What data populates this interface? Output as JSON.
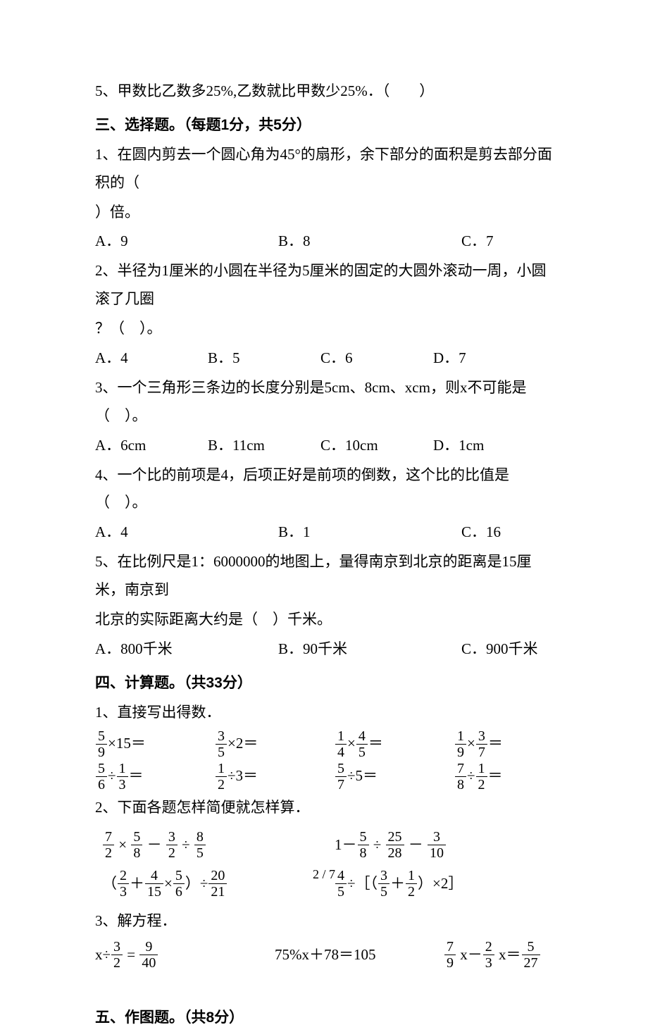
{
  "q5_top": "5、甲数比乙数多25%,乙数就比甲数少25%．（　　）",
  "section3": {
    "title": "三、选择题。（每题1分，共5分）",
    "q1": {
      "text1": "1、在圆内剪去一个圆心角为45°的扇形，余下部分的面积是剪去部分面积的（",
      "text2": "）倍。",
      "a": "A．9",
      "b": "B．8",
      "c": "C．7"
    },
    "q2": {
      "text1": "2、半径为1厘米的小圆在半径为5厘米的固定的大圆外滚动一周，小圆滚了几圈",
      "text2": "？（　）。",
      "a": "A．4",
      "b": "B．5",
      "c": "C．6",
      "d": "D．7"
    },
    "q3": {
      "text": "3、一个三角形三条边的长度分别是5cm、8cm、xcm，则x不可能是（　）。",
      "a": "A．6cm",
      "b": "B．11cm",
      "c": "C．10cm",
      "d": "D．1cm"
    },
    "q4": {
      "text": "4、一个比的前项是4，后项正好是前项的倒数，这个比的比值是（　）。",
      "a": "A．4",
      "b": "B．1",
      "c": "C．16"
    },
    "q5": {
      "text1": "5、在比例尺是1：6000000的地图上，量得南京到北京的距离是15厘米，南京到",
      "text2": "北京的实际距离大约是（　）千米。",
      "a": "A．800千米",
      "b": "B．90千米",
      "c": "C．900千米"
    }
  },
  "section4": {
    "title": "四、计算题。（共33分）",
    "q1_label": "1、直接写出得数．",
    "q2_label": "2、下面各题怎样简便就怎样算．",
    "q3_label": "3、解方程．",
    "eq_middle": "75%x＋78＝105"
  },
  "section5": {
    "title": "五、作图题。（共8分）"
  },
  "page_num": "2 / 7"
}
